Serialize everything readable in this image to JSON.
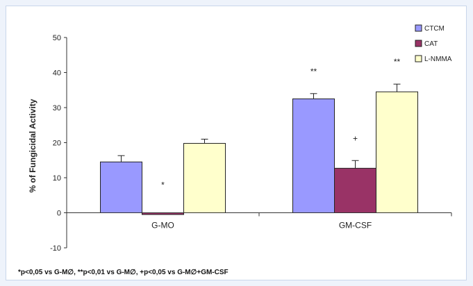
{
  "chart_data": {
    "type": "bar",
    "title": "",
    "xlabel": "",
    "ylabel": "% of Fungicidal Activity",
    "ylim": [
      -10,
      50
    ],
    "yticks": [
      -10,
      0,
      10,
      20,
      30,
      40,
      50
    ],
    "grid": false,
    "legend_position": "top-right",
    "categories": [
      "G-MO",
      "GM-CSF"
    ],
    "series": [
      {
        "name": "CTCM",
        "color": "#9999ff",
        "values": [
          14.5,
          32.5
        ],
        "errors": [
          1.8,
          1.5
        ],
        "significance": [
          "",
          "**"
        ]
      },
      {
        "name": "CAT",
        "color": "#993366",
        "values": [
          -0.5,
          12.7
        ],
        "errors": [
          0.0,
          2.2
        ],
        "significance": [
          "*",
          "+"
        ]
      },
      {
        "name": "L-NMMA",
        "color": "#ffffcc",
        "values": [
          19.8,
          34.5
        ],
        "errors": [
          1.2,
          2.2
        ],
        "significance": [
          "",
          "**"
        ]
      }
    ]
  },
  "footnote": "*p<0,05 vs G-M∅, **p<0,01 vs G-M∅, +p<0,05 vs G-M∅+GM-CSF"
}
